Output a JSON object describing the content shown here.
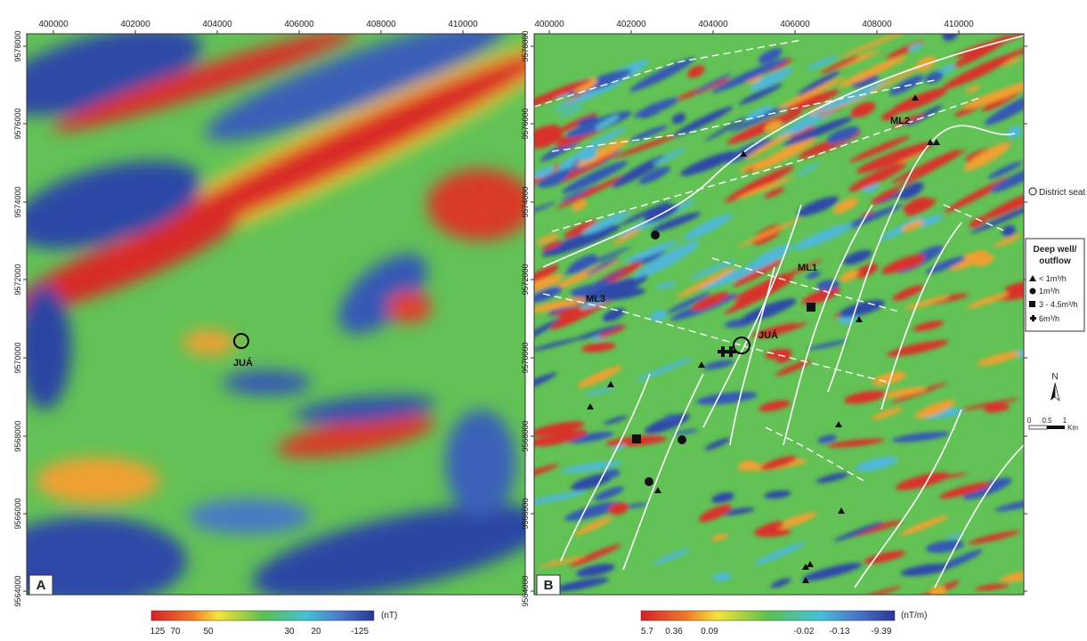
{
  "panels": [
    {
      "label": "A",
      "x_ticks": [
        "400000",
        "402000",
        "404000",
        "406000",
        "408000",
        "410000"
      ],
      "y_ticks": [
        "9578000",
        "9576000",
        "9574000",
        "9572000",
        "9570000",
        "9568000",
        "9566000",
        "9564000"
      ],
      "annotations": [
        "JUÁ"
      ],
      "colorbar": {
        "labels": [
          "125",
          "70",
          "50",
          "30",
          "20",
          "-125"
        ],
        "unit": "(nT)"
      }
    },
    {
      "label": "B",
      "x_ticks": [
        "400000",
        "402000",
        "404000",
        "406000",
        "408000",
        "410000"
      ],
      "y_ticks": [
        "9578000",
        "9576000",
        "9574000",
        "9572000",
        "9570000",
        "9568000",
        "9566000",
        "9564000"
      ],
      "annotations": [
        "ML2",
        "ML1",
        "ML3",
        "JUÁ"
      ],
      "colorbar": {
        "labels": [
          "5.7",
          "0.36",
          "0.09",
          "-0.02",
          "-0.13",
          "-9.39"
        ],
        "unit": "(nT/m)"
      }
    }
  ],
  "legend": {
    "district_seat": "District seat",
    "title": [
      "Deep well/",
      "outflow"
    ],
    "items": [
      "< 1m³/h",
      "1m³/h",
      "3 - 4.5m³/h",
      "6m³/h"
    ]
  },
  "north": "N",
  "scale_bar": [
    "0",
    "0.5",
    "1",
    "Km"
  ]
}
